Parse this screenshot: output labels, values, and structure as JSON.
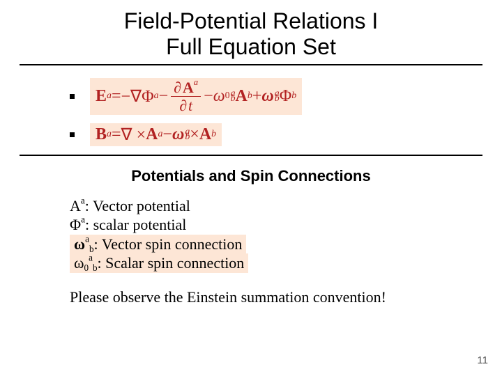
{
  "colors": {
    "equation_color": "#b22222",
    "highlight_bg": "#fde6d6",
    "rule_color": "#000000",
    "text_color": "#000000",
    "background": "#ffffff"
  },
  "title": {
    "line1": "Field-Potential Relations I",
    "line2": "Full Equation Set",
    "fontsize": 32
  },
  "equations": {
    "e1_lhs_base": "E",
    "e1_lhs_sup": "a",
    "e1_eq": " = ",
    "e1_t1_neg": "−∇Φ",
    "e1_t1_sup": "a",
    "e1_t2_minus": " − ",
    "e1_frac_num_d": "∂",
    "e1_frac_num_A": "A",
    "e1_frac_num_sup": "a",
    "e1_frac_den_d": "∂",
    "e1_frac_den_t": "t",
    "e1_t3_minus": " − ",
    "e1_t3_omega": "ω",
    "e1_t3_sub0": "0",
    "e1_t3_supa": "a",
    "e1_t3_subb": "b",
    "e1_t3_A": "A",
    "e1_t3_Asup": "b",
    "e1_t4_plus": " + ",
    "e1_t4_omega": "ω",
    "e1_t4_supa": "a",
    "e1_t4_subb": "b",
    "e1_t4_Phi": "Φ",
    "e1_t4_Phisup": "b",
    "e2_lhs_base": "B",
    "e2_lhs_sup": "a",
    "e2_eq": " = ",
    "e2_t1": "∇ × ",
    "e2_t1_A": "A",
    "e2_t1_sup": "a",
    "e2_t2_minus": " − ",
    "e2_t2_omega": "ω",
    "e2_t2_supa": "a",
    "e2_t2_subb": "b",
    "e2_t2_times": " × ",
    "e2_t2_A": "A",
    "e2_t2_Asup": "b"
  },
  "subhead": "Potentials and Spin Connections",
  "defs": {
    "r1_sym": "A",
    "r1_sup": "a",
    "r1_txt": ": Vector potential",
    "r2_sym": "Φ",
    "r2_sup": "a",
    "r2_txt": ": scalar potential",
    "r3_sym": "ω",
    "r3_sup": "a",
    "r3_sub": "b",
    "r3_txt": ": Vector spin connection",
    "r4_sym": "ω",
    "r4_sub0": "0",
    "r4_sup": "a",
    "r4_sub": "b",
    "r4_txt": ": Scalar spin connection"
  },
  "note": "Please observe the Einstein summation convention!",
  "page_number": "11"
}
